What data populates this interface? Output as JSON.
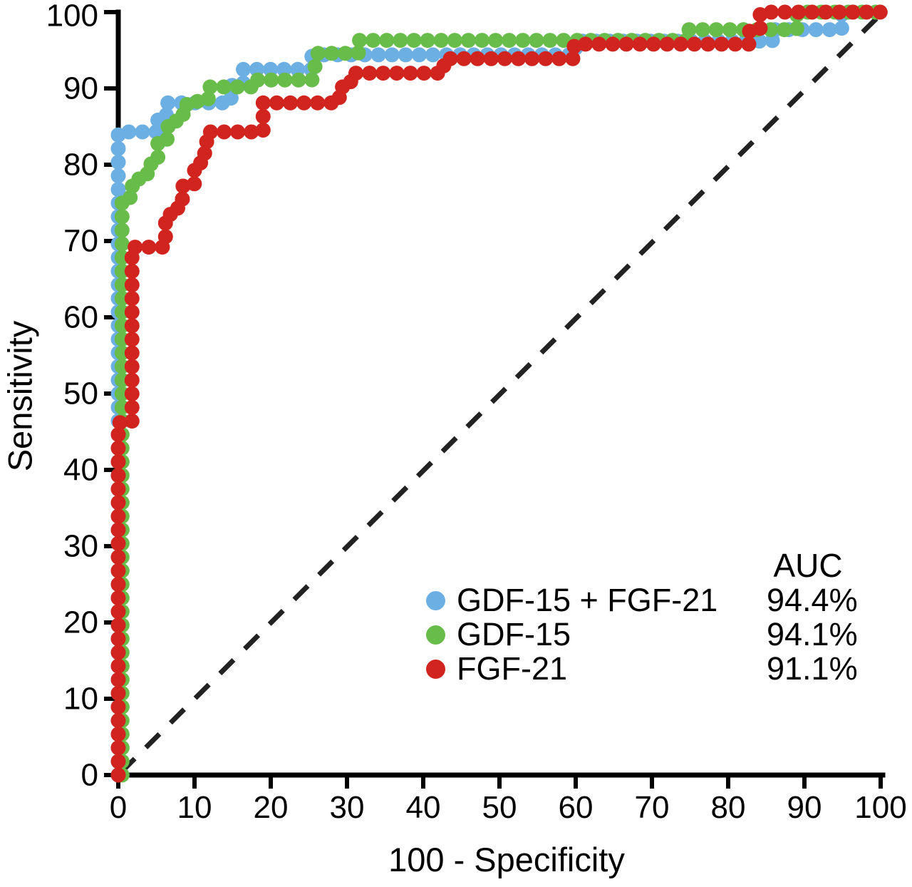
{
  "chart_data": {
    "type": "line",
    "subtype": "roc-dotted-step-curves",
    "title": "",
    "xlabel": "100 - Specificity",
    "ylabel": "Sensitivity",
    "xlim": [
      0,
      100
    ],
    "ylim": [
      0,
      100
    ],
    "x_ticks": [
      0,
      10,
      20,
      30,
      40,
      50,
      60,
      70,
      80,
      90,
      100
    ],
    "y_ticks": [
      0,
      10,
      20,
      30,
      40,
      50,
      60,
      70,
      80,
      90,
      100
    ],
    "grid": false,
    "reference_line": {
      "style": "dashed",
      "color": "#222222",
      "from": [
        0,
        0
      ],
      "to": [
        100,
        100
      ]
    },
    "legend": {
      "header": "AUC",
      "position": "bottom-right"
    },
    "series": [
      {
        "name": "GDF-15 + FGF-21",
        "auc": "94.4%",
        "color": "#6CAFE3",
        "points": [
          [
            0,
            0
          ],
          [
            0,
            84.3
          ],
          [
            5.2,
            84.3
          ],
          [
            5.2,
            86.2
          ],
          [
            6.3,
            86.2
          ],
          [
            6.3,
            88.1
          ],
          [
            14.8,
            88.1
          ],
          [
            14.8,
            90.4
          ],
          [
            16.4,
            90.4
          ],
          [
            16.4,
            92.5
          ],
          [
            25.4,
            92.5
          ],
          [
            25.4,
            94.4
          ],
          [
            60,
            94.4
          ],
          [
            60,
            96.2
          ],
          [
            85.8,
            96.2
          ],
          [
            85.8,
            97.7
          ],
          [
            94.9,
            97.7
          ],
          [
            94.9,
            100
          ],
          [
            100,
            100
          ]
        ]
      },
      {
        "name": "GDF-15",
        "auc": "94.1%",
        "color": "#68BC49",
        "points": [
          [
            0.5,
            0
          ],
          [
            0.5,
            75.7
          ],
          [
            1.6,
            75.7
          ],
          [
            1.6,
            77.2
          ],
          [
            2.7,
            77.2
          ],
          [
            2.7,
            78.7
          ],
          [
            3.8,
            78.7
          ],
          [
            3.8,
            80.1
          ],
          [
            5.2,
            80.1
          ],
          [
            5.2,
            83.2
          ],
          [
            6.4,
            83.2
          ],
          [
            6.4,
            85.0
          ],
          [
            7.6,
            85.0
          ],
          [
            7.6,
            86.6
          ],
          [
            9.0,
            86.6
          ],
          [
            9.0,
            88.3
          ],
          [
            11.8,
            88.3
          ],
          [
            11.8,
            90.2
          ],
          [
            17.8,
            90.2
          ],
          [
            17.8,
            91.1
          ],
          [
            25.4,
            91.1
          ],
          [
            26.2,
            94.6
          ],
          [
            31.5,
            94.6
          ],
          [
            31.5,
            96.3
          ],
          [
            74.8,
            96.3
          ],
          [
            74.8,
            97.7
          ],
          [
            89.0,
            97.7
          ],
          [
            89.0,
            100
          ],
          [
            100,
            100
          ]
        ]
      },
      {
        "name": "FGF-21",
        "auc": "91.1%",
        "color": "#D2241E",
        "points": [
          [
            0,
            0
          ],
          [
            0,
            46.2
          ],
          [
            1.8,
            46.2
          ],
          [
            1.8,
            69.2
          ],
          [
            6.2,
            69.2
          ],
          [
            6.2,
            73.5
          ],
          [
            7.8,
            73.5
          ],
          [
            7.8,
            75.5
          ],
          [
            8.5,
            75.5
          ],
          [
            8.5,
            77.5
          ],
          [
            10.0,
            77.5
          ],
          [
            10.0,
            79.5
          ],
          [
            10.8,
            79.5
          ],
          [
            10.8,
            81.5
          ],
          [
            11.6,
            81.5
          ],
          [
            11.6,
            84.3
          ],
          [
            19.0,
            84.3
          ],
          [
            19.0,
            88.1
          ],
          [
            29.0,
            88.1
          ],
          [
            29.0,
            90.2
          ],
          [
            30.5,
            90.2
          ],
          [
            30.5,
            92.0
          ],
          [
            42.7,
            92.0
          ],
          [
            42.7,
            93.9
          ],
          [
            59.8,
            93.9
          ],
          [
            59.8,
            95.8
          ],
          [
            82.8,
            95.8
          ],
          [
            82.8,
            97.7
          ],
          [
            84.2,
            97.7
          ],
          [
            84.2,
            100
          ],
          [
            100,
            100
          ]
        ]
      }
    ]
  }
}
